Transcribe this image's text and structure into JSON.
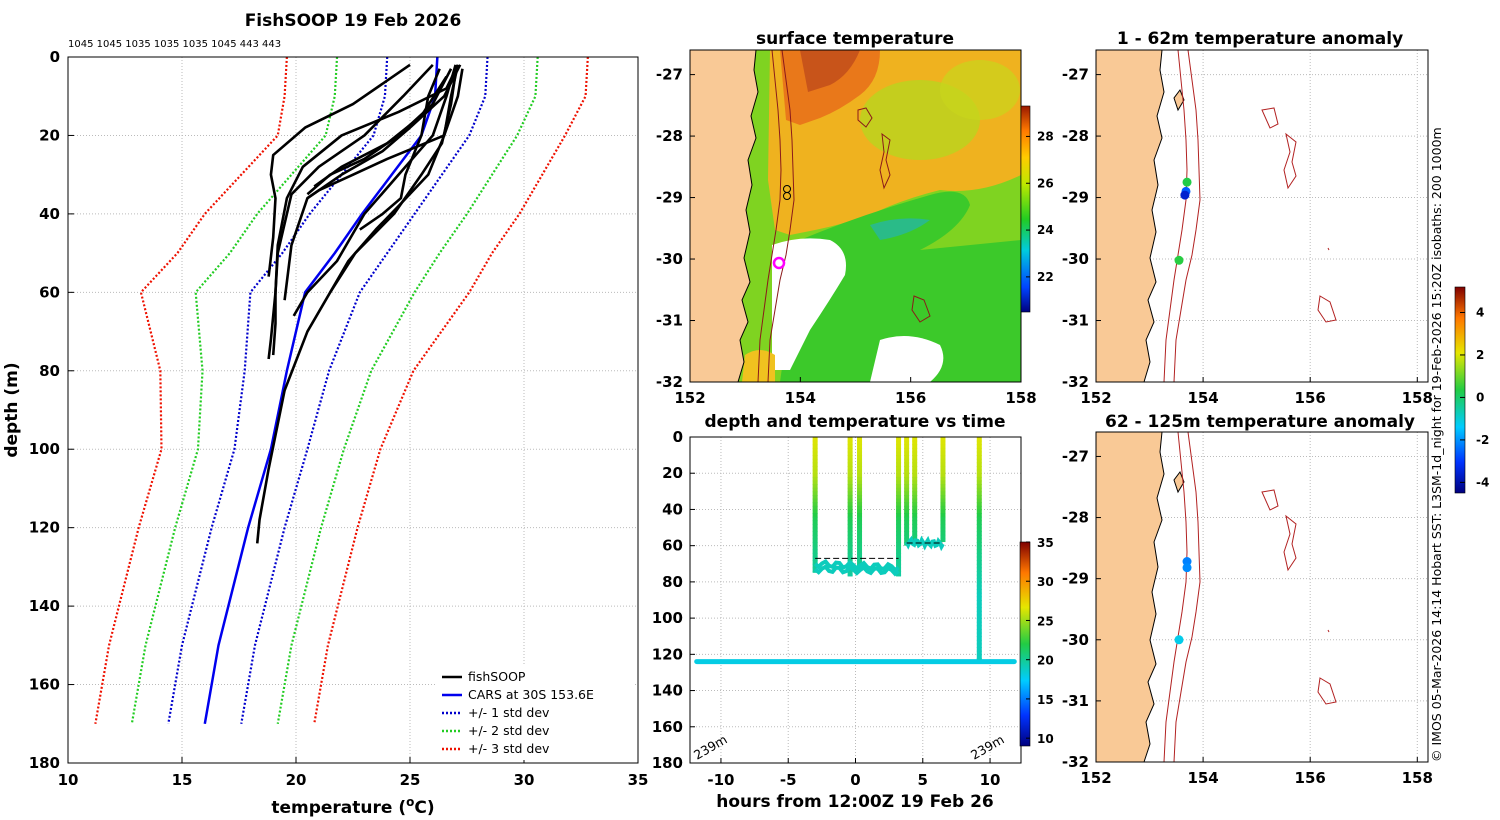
{
  "chart_data": [
    {
      "type": "line",
      "title": "FishSOOP 19 Feb 2026",
      "top_labels": "1045 1045 1035 1035 1035 1045 443 443",
      "xlabel": "temperature (",
      "xlabel_sup": "o",
      "xlabel_end": "C)",
      "ylabel": "depth (m)",
      "xlim": [
        10,
        35
      ],
      "ylim": [
        0,
        180
      ],
      "x_ticks": [
        10,
        15,
        20,
        25,
        30,
        35
      ],
      "y_ticks": [
        0,
        20,
        40,
        60,
        80,
        100,
        120,
        140,
        160,
        180
      ],
      "grid": true,
      "legend_position": "bottom-right",
      "legend": [
        "fishSOOP",
        "CARS at 30S 153.6E",
        "+/- 1 std dev",
        "+/- 2 std dev",
        "+/- 3 std dev"
      ],
      "cars_depth": [
        0,
        10,
        20,
        30,
        40,
        50,
        60,
        80,
        100,
        120,
        150,
        170
      ],
      "cars_mean": [
        26.2,
        26.1,
        25.5,
        24.2,
        22.9,
        21.7,
        20.4,
        19.6,
        18.9,
        17.9,
        16.6,
        16.0
      ],
      "cars_std": [
        2.2,
        2.2,
        2.1,
        2.2,
        2.3,
        2.3,
        2.4,
        1.85,
        1.6,
        1.6,
        1.6,
        1.6
      ],
      "profiles": [
        {
          "name": "p1",
          "depth": [
            2,
            10,
            20,
            28,
            35,
            50,
            60,
            68,
            76
          ],
          "temp": [
            26.0,
            24.7,
            23.0,
            21.0,
            19.8,
            19.2,
            19.1,
            19.1,
            19.0
          ]
        },
        {
          "name": "p2",
          "depth": [
            2,
            8,
            14,
            20,
            28,
            36,
            48,
            60,
            72,
            77
          ],
          "temp": [
            27.1,
            26.6,
            24.5,
            22.0,
            20.3,
            19.6,
            19.2,
            19.1,
            18.9,
            18.8
          ]
        },
        {
          "name": "p3",
          "depth": [
            2,
            12,
            18,
            25,
            30,
            36,
            46,
            56
          ],
          "temp": [
            25.0,
            22.5,
            20.4,
            19.0,
            18.9,
            19.1,
            19.0,
            18.8
          ]
        },
        {
          "name": "p4",
          "depth": [
            2,
            10,
            18,
            24,
            30,
            36,
            48,
            62
          ],
          "temp": [
            27.2,
            26.5,
            25.0,
            23.8,
            22.0,
            20.5,
            19.8,
            19.5
          ]
        },
        {
          "name": "p5",
          "depth": [
            3,
            10,
            20,
            26,
            30,
            34,
            36
          ],
          "temp": [
            27.3,
            27.1,
            26.5,
            24.0,
            22.5,
            21.0,
            20.5
          ]
        },
        {
          "name": "p6",
          "depth": [
            3,
            12,
            20,
            26,
            30,
            35
          ],
          "temp": [
            26.8,
            26.0,
            24.5,
            23.0,
            21.5,
            20.5
          ]
        },
        {
          "name": "p7",
          "depth": [
            5,
            15,
            22,
            28,
            33
          ],
          "temp": [
            26.6,
            25.5,
            24.0,
            22.0,
            20.8
          ]
        },
        {
          "name": "p8",
          "depth": [
            2,
            10,
            20,
            30,
            40,
            52,
            60,
            66
          ],
          "temp": [
            27.0,
            26.6,
            26.0,
            24.5,
            23.0,
            21.8,
            20.5,
            19.9
          ]
        },
        {
          "name": "p9",
          "depth": [
            2,
            10,
            20,
            30,
            38,
            44,
            52,
            60,
            70,
            85,
            105,
            118,
            124
          ],
          "temp": [
            27.1,
            26.8,
            26.5,
            25.8,
            24.5,
            23.5,
            22.3,
            21.5,
            20.5,
            19.5,
            18.8,
            18.4,
            18.3
          ]
        },
        {
          "name": "p10",
          "depth": [
            3,
            10,
            20,
            30,
            36,
            40,
            44
          ],
          "temp": [
            26.3,
            25.8,
            25.5,
            24.8,
            24.6,
            23.8,
            22.8
          ]
        },
        {
          "name": "p11",
          "depth": [
            4,
            12,
            22,
            30,
            40,
            50,
            60
          ],
          "temp": [
            27.0,
            26.8,
            26.4,
            25.5,
            24.3,
            22.6,
            21.5
          ]
        }
      ]
    },
    {
      "type": "heatmap",
      "title": "surface temperature",
      "xlim": [
        152,
        158
      ],
      "ylim": [
        -32,
        -26.6
      ],
      "x_ticks": [
        152,
        154,
        156,
        158
      ],
      "y_ticks": [
        -27,
        -28,
        -29,
        -30,
        -31,
        -32
      ],
      "colorbar_ticks": [
        22,
        24,
        26,
        28
      ],
      "colorbar_range": [
        20.5,
        29.3
      ]
    },
    {
      "type": "scatter",
      "title": "depth and temperature vs time",
      "xlabel": "hours from 12:00Z 19 Feb 26",
      "xlim": [
        -12.3,
        12.3
      ],
      "ylim": [
        0,
        180
      ],
      "x_ticks": [
        -10,
        -5,
        0,
        5,
        10
      ],
      "y_ticks": [
        0,
        20,
        40,
        60,
        80,
        100,
        120,
        140,
        160,
        180
      ],
      "colorbar_ticks": [
        10,
        15,
        20,
        25,
        30,
        35
      ],
      "colorbar_range": [
        9,
        35
      ],
      "corner_left": "239m",
      "corner_right": "239m",
      "casts": [
        {
          "t": -3.0,
          "bottom": 75
        },
        {
          "t": -0.4,
          "bottom": 77
        },
        {
          "t": 0.3,
          "bottom": 73
        },
        {
          "t": 3.2,
          "bottom": 77
        },
        {
          "t": 3.8,
          "bottom": 60
        },
        {
          "t": 4.4,
          "bottom": 60
        },
        {
          "t": 6.5,
          "bottom": 58
        },
        {
          "t": 9.2,
          "bottom": 123
        }
      ],
      "long_cast": {
        "t_start": -11.8,
        "t_end": 11.8,
        "depth": 124
      }
    },
    {
      "type": "scatter",
      "title": "1 - 62m temperature anomaly",
      "xlim": [
        152,
        158.2
      ],
      "ylim": [
        -32,
        -26.6
      ],
      "x_ticks": [
        152,
        154,
        156,
        158
      ],
      "y_ticks": [
        -27,
        -28,
        -29,
        -30,
        -31,
        -32
      ],
      "points": [
        {
          "lon": 153.7,
          "lat": -28.75,
          "value": 0.3
        },
        {
          "lon": 153.68,
          "lat": -28.9,
          "value": -2.6
        },
        {
          "lon": 153.66,
          "lat": -28.96,
          "value": -3.6
        },
        {
          "lon": 153.55,
          "lat": -30.02,
          "value": 0.4
        }
      ]
    },
    {
      "type": "scatter",
      "title": "62 - 125m temperature anomaly",
      "xlim": [
        152,
        158.2
      ],
      "ylim": [
        -32,
        -26.6
      ],
      "x_ticks": [
        152,
        154,
        156,
        158
      ],
      "y_ticks": [
        -27,
        -28,
        -29,
        -30,
        -31,
        -32
      ],
      "points": [
        {
          "lon": 153.7,
          "lat": -28.72,
          "value": -2.2
        },
        {
          "lon": 153.7,
          "lat": -28.82,
          "value": -2.1
        },
        {
          "lon": 153.55,
          "lat": -30.0,
          "value": -1.2
        }
      ]
    }
  ],
  "anomaly_colorbar": {
    "ticks": [
      4,
      2,
      0,
      -2,
      -4
    ],
    "range": [
      -4.5,
      5.2
    ]
  },
  "side_note": "© IMOS 05-Mar-2026 14:14 Hobart SST: L3SM-1d_night for 19-Feb-2026 15:20Z isobaths: 200  1000m",
  "colors": {
    "profile": "#000000",
    "cars": "#0000ee",
    "std1": "#0000cc",
    "std2": "#22cc22",
    "std3": "#ee1100",
    "land": "#f9c996",
    "isobath": "#b22222",
    "grid": "#bbbbbb"
  }
}
